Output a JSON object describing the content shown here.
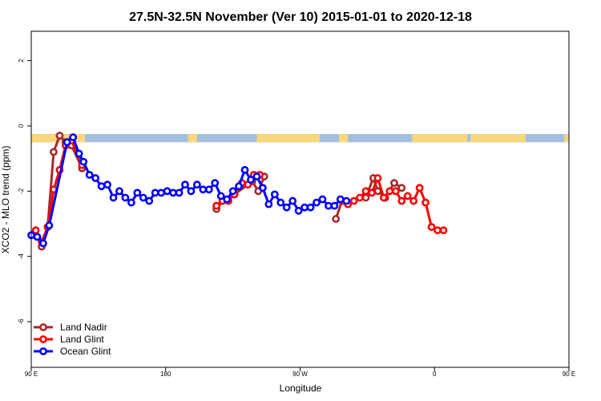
{
  "chart_data": {
    "type": "line",
    "title": "27.5N-32.5N November (Ver 10)   2015-01-01 to 2020-12-18",
    "xlabel": "Longitude",
    "ylabel": "XCO2 - MLO trend (ppm)",
    "xlim": [
      0,
      360
    ],
    "ylim": [
      -7.4,
      2.9
    ],
    "x_ticks": [
      {
        "value": 0,
        "label": "90 E"
      },
      {
        "value": 90,
        "label": "180"
      },
      {
        "value": 180,
        "label": "90 W"
      },
      {
        "value": 270,
        "label": "0"
      },
      {
        "value": 360,
        "label": "90 E"
      },
      {
        "value": 450,
        "label": "180"
      }
    ],
    "y_ticks": [
      {
        "value": 2,
        "label": "2"
      },
      {
        "value": 0,
        "label": "0"
      },
      {
        "value": -2,
        "label": "-2"
      },
      {
        "value": -4,
        "label": "-4"
      },
      {
        "value": -6,
        "label": "-6"
      }
    ],
    "grid": false,
    "legend_position": "bottom-left",
    "land_ocean_band": {
      "y_top": -0.25,
      "y_bottom": -0.5,
      "ocean_color": "#a3bedf",
      "land_color": "#f9d77b",
      "land_segments": [
        [
          0,
          36
        ],
        [
          105,
          111
        ],
        [
          151,
          193
        ],
        [
          206,
          212
        ],
        [
          255,
          292
        ],
        [
          294,
          331
        ],
        [
          357,
          360
        ]
      ]
    },
    "series": [
      {
        "name": "Land Nadir",
        "color": "#a52a2a",
        "points": [
          [
            7,
            -3.7
          ],
          [
            11,
            -3.1
          ],
          [
            15,
            -0.8
          ],
          [
            19,
            -0.3
          ],
          [
            23,
            -0.5
          ],
          [
            27,
            -0.6
          ],
          [
            34,
            -1.3
          ],
          [
            124,
            -2.55
          ],
          [
            128,
            -2.3
          ],
          [
            136,
            -2.1
          ],
          [
            148,
            -1.7
          ],
          [
            152,
            -2.0
          ],
          [
            156,
            -1.55
          ],
          [
            204,
            -2.85
          ],
          [
            208,
            -2.3
          ],
          [
            224,
            -2.2
          ],
          [
            229,
            -1.6
          ],
          [
            232,
            -2.0
          ],
          [
            237,
            -2.2
          ],
          [
            243,
            -1.75
          ],
          [
            248,
            -1.9
          ]
        ]
      },
      {
        "name": "Land Glint",
        "color": "#ff0000",
        "points": [
          [
            3,
            -3.2
          ],
          [
            7,
            -3.55
          ],
          [
            11,
            -3.1
          ],
          [
            15,
            -1.95
          ],
          [
            19,
            -1.35
          ],
          [
            23,
            -0.6
          ],
          [
            27,
            -0.45
          ],
          [
            34,
            -1.2
          ],
          [
            124,
            -2.45
          ],
          [
            128,
            -2.3
          ],
          [
            132,
            -2.3
          ],
          [
            136,
            -2.1
          ],
          [
            141,
            -1.75
          ],
          [
            145,
            -1.8
          ],
          [
            149,
            -1.5
          ],
          [
            153,
            -1.5
          ],
          [
            208,
            -2.3
          ],
          [
            212,
            -2.4
          ],
          [
            216,
            -2.3
          ],
          [
            220,
            -2.2
          ],
          [
            224,
            -2.0
          ],
          [
            228,
            -2.05
          ],
          [
            232,
            -1.6
          ],
          [
            236,
            -2.2
          ],
          [
            240,
            -2.0
          ],
          [
            244,
            -2.0
          ],
          [
            248,
            -2.3
          ],
          [
            252,
            -2.15
          ],
          [
            256,
            -2.3
          ],
          [
            260,
            -1.9
          ],
          [
            264,
            -2.35
          ],
          [
            268,
            -3.1
          ],
          [
            272,
            -3.2
          ],
          [
            276,
            -3.2
          ]
        ]
      },
      {
        "name": "Ocean Glint",
        "color": "#0000ff",
        "points": [
          [
            0,
            -3.35
          ],
          [
            4,
            -3.4
          ],
          [
            8,
            -3.6
          ],
          [
            12,
            -3.05
          ],
          [
            24,
            -0.5
          ],
          [
            28,
            -0.35
          ],
          [
            32,
            -0.85
          ],
          [
            35,
            -1.1
          ],
          [
            39,
            -1.5
          ],
          [
            43,
            -1.6
          ],
          [
            47,
            -1.85
          ],
          [
            51,
            -1.8
          ],
          [
            55,
            -2.2
          ],
          [
            59,
            -2.0
          ],
          [
            63,
            -2.2
          ],
          [
            67,
            -2.35
          ],
          [
            71,
            -2.05
          ],
          [
            75,
            -2.2
          ],
          [
            79,
            -2.3
          ],
          [
            83,
            -2.05
          ],
          [
            87,
            -2.05
          ],
          [
            91,
            -2.0
          ],
          [
            95,
            -2.05
          ],
          [
            99,
            -2.05
          ],
          [
            103,
            -1.8
          ],
          [
            107,
            -2.0
          ],
          [
            111,
            -1.8
          ],
          [
            115,
            -1.95
          ],
          [
            119,
            -1.95
          ],
          [
            123,
            -1.75
          ],
          [
            127,
            -2.15
          ],
          [
            131,
            -2.25
          ],
          [
            135,
            -2.0
          ],
          [
            139,
            -1.85
          ],
          [
            143,
            -1.35
          ],
          [
            147,
            -1.65
          ],
          [
            151,
            -1.55
          ],
          [
            155,
            -1.9
          ],
          [
            159,
            -2.4
          ],
          [
            163,
            -2.1
          ],
          [
            167,
            -2.35
          ],
          [
            171,
            -2.5
          ],
          [
            175,
            -2.3
          ],
          [
            179,
            -2.6
          ],
          [
            183,
            -2.5
          ],
          [
            187,
            -2.5
          ],
          [
            191,
            -2.35
          ],
          [
            195,
            -2.25
          ],
          [
            199,
            -2.45
          ],
          [
            203,
            -2.45
          ],
          [
            207,
            -2.25
          ],
          [
            211,
            -2.3
          ]
        ]
      }
    ]
  }
}
